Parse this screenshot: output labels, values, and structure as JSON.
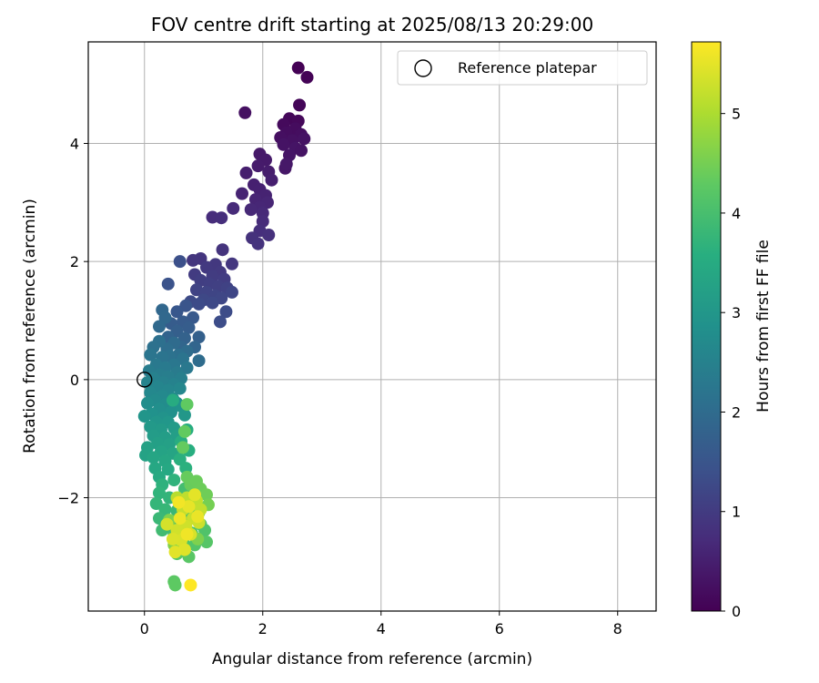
{
  "chart_data": {
    "type": "scatter",
    "title": "FOV centre drift starting at 2025/08/13 20:29:00",
    "xlabel": "Angular distance from reference (arcmin)",
    "ylabel": "Rotation from reference (arcmin)",
    "xlim": [
      -0.95,
      8.65
    ],
    "ylim": [
      -3.92,
      5.72
    ],
    "xticks": [
      0,
      2,
      4,
      6,
      8
    ],
    "yticks": [
      -2,
      0,
      2,
      4
    ],
    "xtick_labels": [
      "0",
      "2",
      "4",
      "6",
      "8"
    ],
    "ytick_labels": [
      "−2",
      "0",
      "2",
      "4"
    ],
    "grid": true,
    "legend": {
      "position": "top-right",
      "entries": [
        "Reference platepar"
      ]
    },
    "reference_point": {
      "x": 0,
      "y": 0,
      "label": "Reference platepar"
    },
    "colorbar": {
      "label": "Hours from first FF file",
      "colormap": "viridis",
      "range": [
        0,
        5.72
      ],
      "ticks": [
        0,
        1,
        2,
        3,
        4,
        5
      ],
      "tick_labels": [
        "0",
        "1",
        "2",
        "3",
        "4",
        "5"
      ]
    },
    "points": [
      [
        2.6,
        5.28,
        0.02
      ],
      [
        2.75,
        5.12,
        0.03
      ],
      [
        1.7,
        4.52,
        0.25
      ],
      [
        2.62,
        4.65,
        0.08
      ],
      [
        2.45,
        4.42,
        0.1
      ],
      [
        2.6,
        4.38,
        0.12
      ],
      [
        2.35,
        4.32,
        0.15
      ],
      [
        2.55,
        4.25,
        0.18
      ],
      [
        2.4,
        4.18,
        0.2
      ],
      [
        2.65,
        4.15,
        0.22
      ],
      [
        2.3,
        4.1,
        0.24
      ],
      [
        2.5,
        4.05,
        0.26
      ],
      [
        2.7,
        4.08,
        0.28
      ],
      [
        2.35,
        3.98,
        0.3
      ],
      [
        2.55,
        3.92,
        0.32
      ],
      [
        2.45,
        3.8,
        0.34
      ],
      [
        2.65,
        3.88,
        0.3
      ],
      [
        2.38,
        3.58,
        0.36
      ],
      [
        2.4,
        3.65,
        0.38
      ],
      [
        1.95,
        3.82,
        0.4
      ],
      [
        2.05,
        3.72,
        0.42
      ],
      [
        1.92,
        3.62,
        0.44
      ],
      [
        2.1,
        3.52,
        0.46
      ],
      [
        1.72,
        3.5,
        0.48
      ],
      [
        2.15,
        3.38,
        0.5
      ],
      [
        1.85,
        3.3,
        0.52
      ],
      [
        1.95,
        3.22,
        0.54
      ],
      [
        2.05,
        3.12,
        0.56
      ],
      [
        1.65,
        3.15,
        0.58
      ],
      [
        1.88,
        3.05,
        0.6
      ],
      [
        2.08,
        3.0,
        0.62
      ],
      [
        1.95,
        2.92,
        0.64
      ],
      [
        1.8,
        2.88,
        0.66
      ],
      [
        2.0,
        2.82,
        0.68
      ],
      [
        1.5,
        2.9,
        0.7
      ],
      [
        2.0,
        2.68,
        0.72
      ],
      [
        1.15,
        2.75,
        0.74
      ],
      [
        1.3,
        2.74,
        0.76
      ],
      [
        1.95,
        2.52,
        0.78
      ],
      [
        2.1,
        2.45,
        0.8
      ],
      [
        1.82,
        2.4,
        0.82
      ],
      [
        1.92,
        2.3,
        0.84
      ],
      [
        1.32,
        2.2,
        0.86
      ],
      [
        0.95,
        2.05,
        0.88
      ],
      [
        0.82,
        2.02,
        0.9
      ],
      [
        1.48,
        1.96,
        0.92
      ],
      [
        1.2,
        1.95,
        0.94
      ],
      [
        1.05,
        1.9,
        0.96
      ],
      [
        1.28,
        1.82,
        0.98
      ],
      [
        0.85,
        1.78,
        1.0
      ],
      [
        1.15,
        1.75,
        1.02
      ],
      [
        1.35,
        1.7,
        1.04
      ],
      [
        0.95,
        1.68,
        1.06
      ],
      [
        1.1,
        1.62,
        1.08
      ],
      [
        1.25,
        1.58,
        1.1
      ],
      [
        1.4,
        1.55,
        1.12
      ],
      [
        0.88,
        1.52,
        1.14
      ],
      [
        1.05,
        1.48,
        1.16
      ],
      [
        1.2,
        1.42,
        1.18
      ],
      [
        1.48,
        1.48,
        1.2
      ],
      [
        1.3,
        1.38,
        1.22
      ],
      [
        1.0,
        1.35,
        1.24
      ],
      [
        1.15,
        1.3,
        1.26
      ],
      [
        0.78,
        1.32,
        1.28
      ],
      [
        0.92,
        1.28,
        1.3
      ],
      [
        1.38,
        1.15,
        1.32
      ],
      [
        1.28,
        0.98,
        1.34
      ],
      [
        0.6,
        2.0,
        1.4
      ],
      [
        0.4,
        1.62,
        1.45
      ],
      [
        0.7,
        1.25,
        1.5
      ],
      [
        0.55,
        1.15,
        1.55
      ],
      [
        0.82,
        1.05,
        1.58
      ],
      [
        0.65,
        0.98,
        1.62
      ],
      [
        0.45,
        0.95,
        1.65
      ],
      [
        0.75,
        0.88,
        1.68
      ],
      [
        0.55,
        0.82,
        1.72
      ],
      [
        0.92,
        0.72,
        1.75
      ],
      [
        0.68,
        0.7,
        1.78
      ],
      [
        0.4,
        0.72,
        1.82
      ],
      [
        0.85,
        0.55,
        1.85
      ],
      [
        0.62,
        0.55,
        1.88
      ],
      [
        0.3,
        1.18,
        1.9
      ],
      [
        0.35,
        1.05,
        1.92
      ],
      [
        0.25,
        0.9,
        1.95
      ],
      [
        0.5,
        0.62,
        1.98
      ],
      [
        0.72,
        0.48,
        2.0
      ],
      [
        0.92,
        0.32,
        2.02
      ],
      [
        0.38,
        0.52,
        2.05
      ],
      [
        0.58,
        0.42,
        2.08
      ],
      [
        0.25,
        0.65,
        2.1
      ],
      [
        0.15,
        0.55,
        2.12
      ],
      [
        0.42,
        0.4,
        2.15
      ],
      [
        0.65,
        0.35,
        2.18
      ],
      [
        0.3,
        0.38,
        2.2
      ],
      [
        0.1,
        0.42,
        2.22
      ],
      [
        0.5,
        0.25,
        2.25
      ],
      [
        0.72,
        0.2,
        2.28
      ],
      [
        0.2,
        0.25,
        2.3
      ],
      [
        0.35,
        0.2,
        2.32
      ],
      [
        0.55,
        0.12,
        2.35
      ],
      [
        0.08,
        0.15,
        2.38
      ],
      [
        0.25,
        0.08,
        2.4
      ],
      [
        0.4,
        0.05,
        2.42
      ],
      [
        0.62,
        0.02,
        2.45
      ],
      [
        0.15,
        0.02,
        2.48
      ],
      [
        0.32,
        -0.05,
        2.5
      ],
      [
        0.5,
        -0.08,
        2.52
      ],
      [
        0.05,
        -0.05,
        2.55
      ],
      [
        0.22,
        -0.12,
        2.58
      ],
      [
        0.4,
        -0.18,
        2.6
      ],
      [
        0.6,
        -0.15,
        2.62
      ],
      [
        0.1,
        -0.22,
        2.65
      ],
      [
        0.3,
        -0.28,
        2.68
      ],
      [
        0.48,
        -0.32,
        2.7
      ],
      [
        0.18,
        -0.35,
        2.72
      ],
      [
        0.35,
        -0.42,
        2.75
      ],
      [
        0.55,
        -0.4,
        2.78
      ],
      [
        0.05,
        -0.4,
        2.8
      ],
      [
        0.25,
        -0.5,
        2.82
      ],
      [
        0.45,
        -0.55,
        2.85
      ],
      [
        0.12,
        -0.58,
        2.88
      ],
      [
        0.62,
        -0.45,
        2.9
      ],
      [
        0.32,
        -0.65,
        2.92
      ],
      [
        0.0,
        -0.62,
        2.95
      ],
      [
        0.2,
        -0.72,
        2.98
      ],
      [
        0.4,
        -0.72,
        3.0
      ],
      [
        0.68,
        -0.6,
        3.02
      ],
      [
        0.1,
        -0.8,
        3.05
      ],
      [
        0.28,
        -0.85,
        3.08
      ],
      [
        0.5,
        -0.82,
        3.1
      ],
      [
        0.15,
        -0.95,
        3.12
      ],
      [
        0.35,
        -0.98,
        3.15
      ],
      [
        0.55,
        -0.95,
        3.18
      ],
      [
        0.22,
        -1.08,
        3.2
      ],
      [
        0.42,
        -1.1,
        3.22
      ],
      [
        0.05,
        -1.15,
        3.25
      ],
      [
        0.02,
        -1.28,
        3.28
      ],
      [
        0.28,
        -1.22,
        3.3
      ],
      [
        0.48,
        -1.25,
        3.32
      ],
      [
        0.15,
        -1.32,
        3.35
      ],
      [
        0.35,
        -1.38,
        3.38
      ],
      [
        0.18,
        -1.5,
        3.4
      ],
      [
        0.4,
        -1.52,
        3.42
      ],
      [
        0.25,
        -1.65,
        3.45
      ],
      [
        0.48,
        -0.35,
        3.5
      ],
      [
        0.72,
        -0.85,
        3.52
      ],
      [
        0.62,
        -1.05,
        3.55
      ],
      [
        0.75,
        -1.2,
        3.58
      ],
      [
        0.6,
        -1.35,
        3.6
      ],
      [
        0.7,
        -1.5,
        3.62
      ],
      [
        0.3,
        -1.78,
        3.65
      ],
      [
        0.5,
        -1.7,
        3.68
      ],
      [
        0.25,
        -1.92,
        3.7
      ],
      [
        0.42,
        -2.0,
        3.72
      ],
      [
        0.2,
        -2.1,
        3.75
      ],
      [
        0.35,
        -2.2,
        3.78
      ],
      [
        0.55,
        -2.22,
        3.8
      ],
      [
        0.25,
        -2.35,
        3.82
      ],
      [
        0.45,
        -2.4,
        3.85
      ],
      [
        0.6,
        -2.35,
        3.88
      ],
      [
        0.3,
        -2.55,
        3.9
      ],
      [
        0.5,
        -2.6,
        3.92
      ],
      [
        0.68,
        -1.85,
        3.95
      ],
      [
        0.78,
        -2.0,
        3.98
      ],
      [
        0.88,
        -2.15,
        4.0
      ],
      [
        0.72,
        -2.3,
        4.02
      ],
      [
        0.95,
        -2.45,
        4.05
      ],
      [
        0.8,
        -2.6,
        4.08
      ],
      [
        1.02,
        -2.55,
        4.1
      ],
      [
        0.65,
        -2.75,
        4.12
      ],
      [
        0.85,
        -2.8,
        4.15
      ],
      [
        1.05,
        -2.75,
        4.18
      ],
      [
        0.55,
        -2.95,
        4.2
      ],
      [
        0.75,
        -3.0,
        4.22
      ],
      [
        0.5,
        -3.42,
        4.25
      ],
      [
        0.52,
        -3.48,
        4.28
      ],
      [
        0.72,
        -0.42,
        4.3
      ],
      [
        0.68,
        -0.88,
        4.32
      ],
      [
        0.65,
        -1.15,
        4.34
      ],
      [
        0.72,
        -1.65,
        4.36
      ],
      [
        0.78,
        -1.78,
        4.38
      ],
      [
        0.88,
        -1.72,
        4.4
      ],
      [
        0.95,
        -1.85,
        4.42
      ],
      [
        1.05,
        -1.95,
        4.44
      ],
      [
        0.82,
        -2.05,
        4.46
      ],
      [
        0.92,
        -2.25,
        4.48
      ],
      [
        1.08,
        -2.12,
        4.5
      ],
      [
        0.7,
        -2.5,
        4.52
      ],
      [
        0.6,
        -2.65,
        4.55
      ],
      [
        0.9,
        -2.7,
        4.58
      ],
      [
        0.42,
        -2.38,
        4.6
      ],
      [
        0.5,
        -2.8,
        4.62
      ],
      [
        0.55,
        -2.0,
        5.1
      ],
      [
        0.72,
        -2.0,
        5.15
      ],
      [
        0.88,
        -2.05,
        5.18
      ],
      [
        0.95,
        -2.2,
        5.2
      ],
      [
        0.65,
        -2.2,
        5.22
      ],
      [
        0.82,
        -2.35,
        5.25
      ],
      [
        0.92,
        -2.42,
        5.28
      ],
      [
        0.7,
        -2.48,
        5.3
      ],
      [
        0.55,
        -2.55,
        5.32
      ],
      [
        0.38,
        -2.45,
        5.35
      ],
      [
        0.78,
        -2.62,
        5.38
      ],
      [
        0.62,
        -2.72,
        5.4
      ],
      [
        0.48,
        -2.7,
        5.42
      ],
      [
        0.68,
        -2.88,
        5.45
      ],
      [
        0.52,
        -2.92,
        5.48
      ],
      [
        0.78,
        -3.48,
        5.72
      ],
      [
        0.85,
        -1.95,
        5.5
      ],
      [
        0.75,
        -2.15,
        5.52
      ],
      [
        0.9,
        -2.32,
        5.55
      ],
      [
        0.6,
        -2.35,
        5.58
      ],
      [
        0.72,
        -2.62,
        5.6
      ],
      [
        0.58,
        -2.08,
        5.62
      ]
    ]
  }
}
